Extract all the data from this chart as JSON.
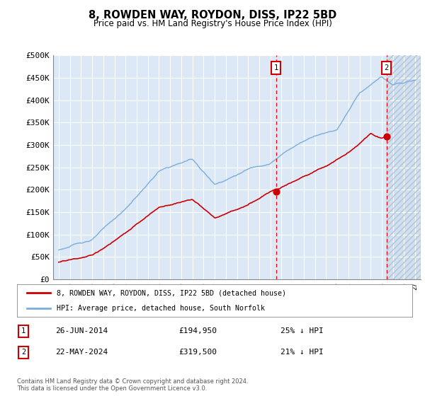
{
  "title": "8, ROWDEN WAY, ROYDON, DISS, IP22 5BD",
  "subtitle": "Price paid vs. HM Land Registry's House Price Index (HPI)",
  "ylabel_ticks": [
    "£0",
    "£50K",
    "£100K",
    "£150K",
    "£200K",
    "£250K",
    "£300K",
    "£350K",
    "£400K",
    "£450K",
    "£500K"
  ],
  "ytick_values": [
    0,
    50000,
    100000,
    150000,
    200000,
    250000,
    300000,
    350000,
    400000,
    450000,
    500000
  ],
  "ylim": [
    0,
    500000
  ],
  "marker1_price": 194950,
  "marker2_price": 319500,
  "marker1_x": 2014.5,
  "marker2_x": 2024.42,
  "legend_line1": "8, ROWDEN WAY, ROYDON, DISS, IP22 5BD (detached house)",
  "legend_line2": "HPI: Average price, detached house, South Norfolk",
  "annot1_date": "26-JUN-2014",
  "annot1_price": "£194,950",
  "annot1_hpi": "25% ↓ HPI",
  "annot2_date": "22-MAY-2024",
  "annot2_price": "£319,500",
  "annot2_hpi": "21% ↓ HPI",
  "footnote": "Contains HM Land Registry data © Crown copyright and database right 2024.\nThis data is licensed under the Open Government Licence v3.0.",
  "hpi_color": "#7aaddc",
  "price_color": "#cc0000",
  "background_color": "#dce8f5",
  "grid_color": "#ffffff",
  "hatch_region_color": "#c8d8e8",
  "hatch_start": 2024.42,
  "xlim_left": 1994.5,
  "xlim_right": 2027.5
}
